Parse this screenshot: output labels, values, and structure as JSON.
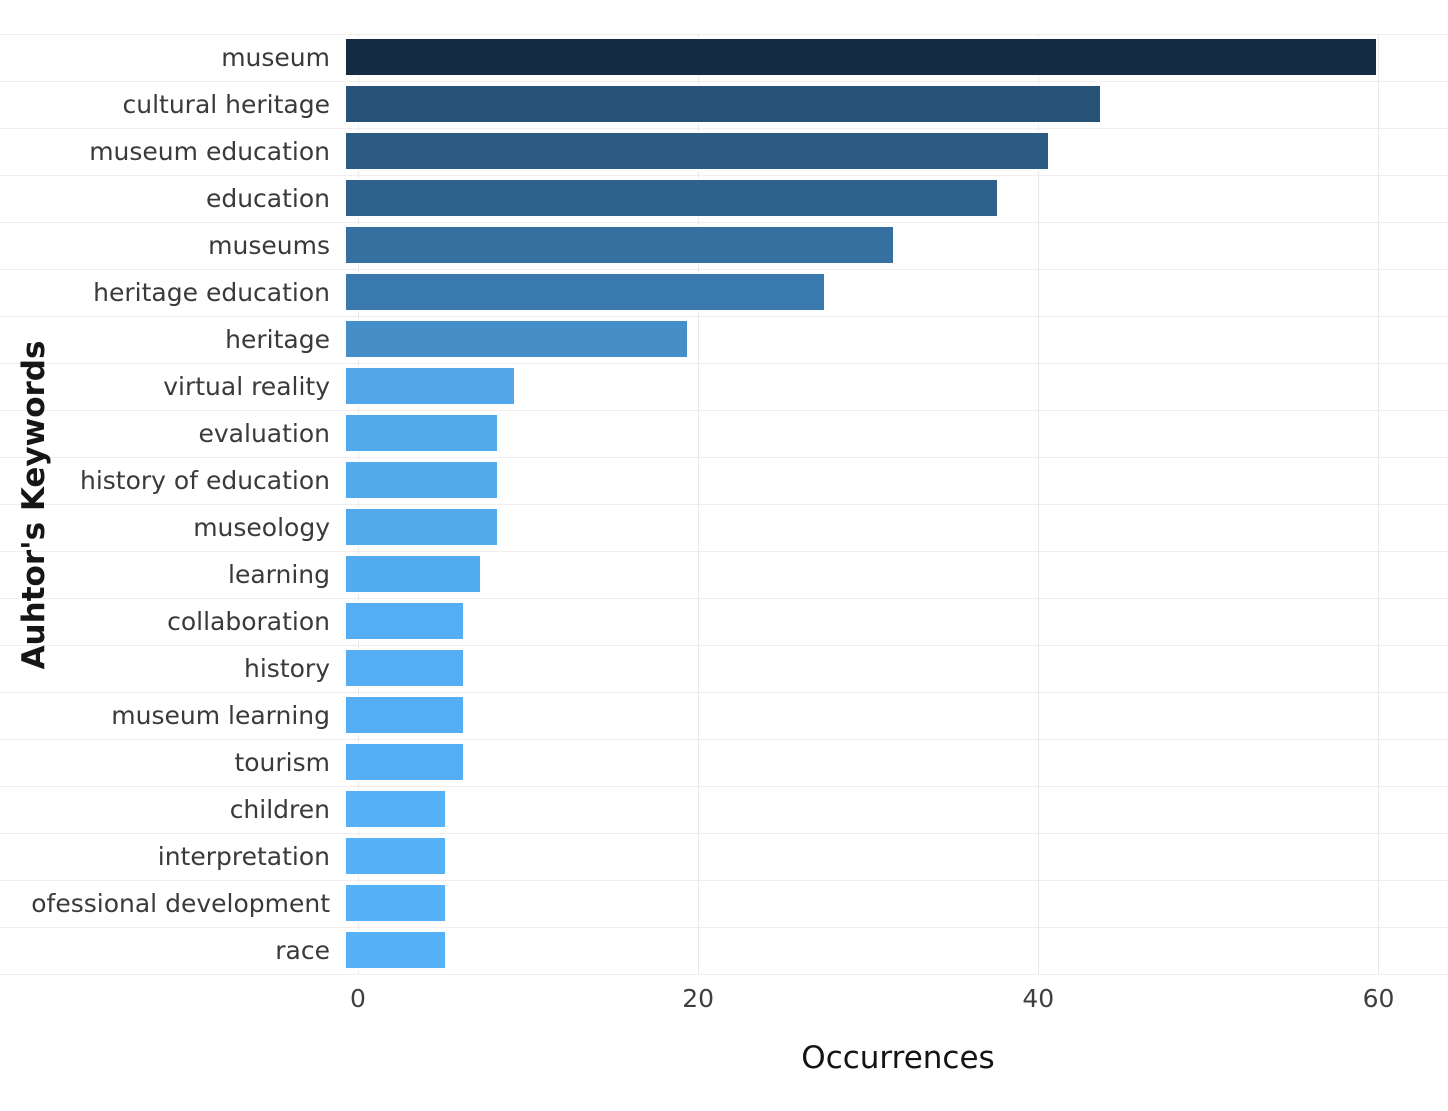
{
  "figure": {
    "background_color": "#ffffff",
    "gridline_color_horizontal": "#f4eded",
    "gridline_color_vertical": "#e9e9e9"
  },
  "chart_data": {
    "type": "bar",
    "orientation": "horizontal",
    "title": "",
    "xlabel": "Occurrences",
    "ylabel": "Auhtor's Keywords",
    "xlim": [
      0,
      63.5
    ],
    "xticks": [
      0,
      20,
      40,
      60
    ],
    "grid": true,
    "legend": "none",
    "categories": [
      "museum",
      "cultural heritage",
      "museum education",
      "education",
      "museums",
      "heritage education",
      "heritage",
      "virtual reality",
      "evaluation",
      "history of education",
      "museology",
      "learning",
      "collaboration",
      "history",
      "museum learning",
      "tourism",
      "children",
      "interpretation",
      "ofessional development",
      "race"
    ],
    "values": [
      60,
      44,
      41,
      38,
      32,
      28,
      20,
      10,
      9,
      9,
      9,
      8,
      7,
      7,
      7,
      7,
      6,
      6,
      6,
      6
    ],
    "bar_colors": [
      "#132b43",
      "#275378",
      "#2b5a82",
      "#2e628c",
      "#3670a0",
      "#3b7aae",
      "#458ec8",
      "#51a7ea",
      "#52aaed",
      "#52aaed",
      "#52aaed",
      "#54acf0",
      "#55aef3",
      "#55aef3",
      "#55aef3",
      "#55aef3",
      "#56b1f7",
      "#56b1f7",
      "#56b1f7",
      "#56b1f7"
    ],
    "bar_border_color": "#fdfdfd",
    "fill_gradient": {
      "low_value_color": "#56b1f7",
      "high_value_color": "#132b43"
    }
  }
}
